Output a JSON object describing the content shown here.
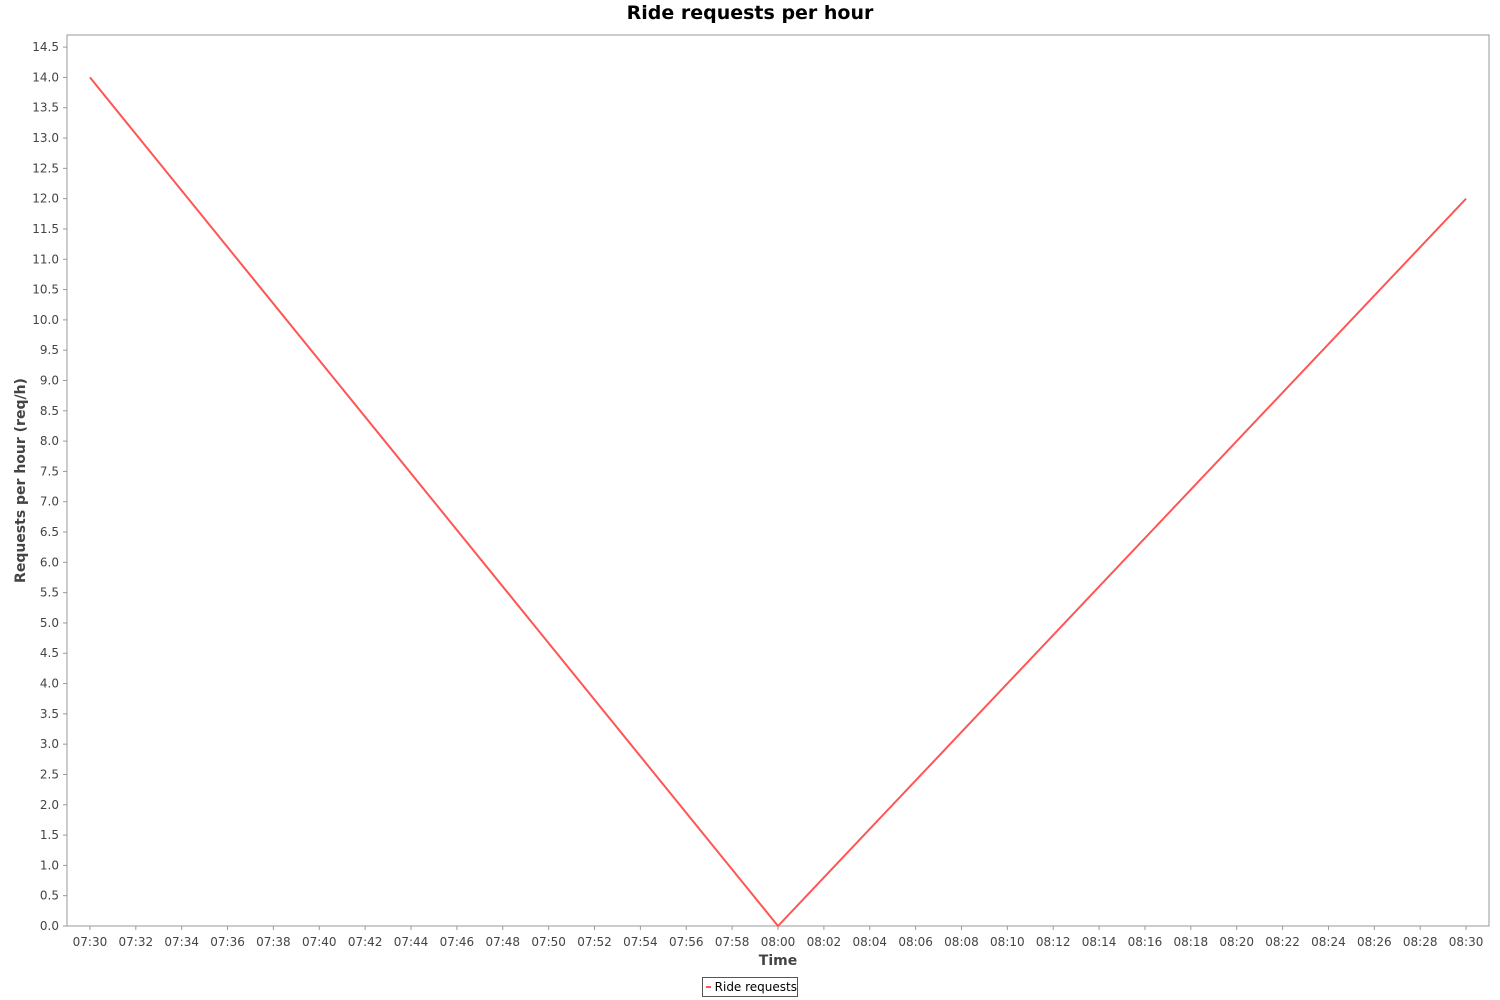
{
  "chart_data": {
    "type": "line",
    "title": "Ride requests per hour",
    "xlabel": "Time",
    "ylabel": "Requests per hour (req/h)",
    "x_ticks": [
      "07:30",
      "07:32",
      "07:34",
      "07:36",
      "07:38",
      "07:40",
      "07:42",
      "07:44",
      "07:46",
      "07:48",
      "07:50",
      "07:52",
      "07:54",
      "07:56",
      "07:58",
      "08:00",
      "08:02",
      "08:04",
      "08:06",
      "08:08",
      "08:10",
      "08:12",
      "08:14",
      "08:16",
      "08:18",
      "08:20",
      "08:22",
      "08:24",
      "08:26",
      "08:28",
      "08:30"
    ],
    "xlim": [
      "07:29",
      "08:31"
    ],
    "ylim": [
      0,
      14.7
    ],
    "y_ticks": [
      "0.0",
      "0.5",
      "1.0",
      "1.5",
      "2.0",
      "2.5",
      "3.0",
      "3.5",
      "4.0",
      "4.5",
      "5.0",
      "5.5",
      "6.0",
      "6.5",
      "7.0",
      "7.5",
      "8.0",
      "8.5",
      "9.0",
      "9.5",
      "10.0",
      "10.5",
      "11.0",
      "11.5",
      "12.0",
      "12.5",
      "13.0",
      "13.5",
      "14.0",
      "14.5"
    ],
    "grid": false,
    "legend_position": "bottom-center",
    "series": [
      {
        "name": "Ride requests",
        "color": "#ff5555",
        "x": [
          "07:30",
          "08:00",
          "08:30"
        ],
        "y": [
          14.0,
          0.0,
          12.0
        ]
      }
    ]
  }
}
